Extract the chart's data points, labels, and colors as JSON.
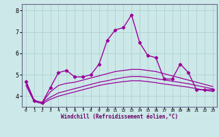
{
  "xlabel": "Windchill (Refroidissement éolien,°C)",
  "ylabel": "",
  "xlim": [
    -0.5,
    23.5
  ],
  "ylim": [
    3.5,
    8.3
  ],
  "yticks": [
    4,
    5,
    6,
    7,
    8
  ],
  "xticks": [
    0,
    1,
    2,
    3,
    4,
    5,
    6,
    7,
    8,
    9,
    10,
    11,
    12,
    13,
    14,
    15,
    16,
    17,
    18,
    19,
    20,
    21,
    22,
    23
  ],
  "bg_color": "#cce8e8",
  "grid_color": "#aacccc",
  "line_color": "#990099",
  "series": [
    [
      4.7,
      3.8,
      3.7,
      4.4,
      5.1,
      5.2,
      4.9,
      4.9,
      5.0,
      5.5,
      6.6,
      7.1,
      7.2,
      7.8,
      6.5,
      5.9,
      5.8,
      4.8,
      4.8,
      5.5,
      5.1,
      4.3,
      4.3,
      4.3
    ],
    [
      4.7,
      3.8,
      3.7,
      4.2,
      4.5,
      4.6,
      4.65,
      4.75,
      4.85,
      4.95,
      5.05,
      5.15,
      5.2,
      5.25,
      5.25,
      5.2,
      5.15,
      5.05,
      4.95,
      4.85,
      4.75,
      4.65,
      4.55,
      4.45
    ],
    [
      4.6,
      3.8,
      3.7,
      3.95,
      4.15,
      4.25,
      4.35,
      4.45,
      4.55,
      4.65,
      4.72,
      4.8,
      4.87,
      4.92,
      4.92,
      4.88,
      4.82,
      4.76,
      4.7,
      4.64,
      4.58,
      4.5,
      4.42,
      4.34
    ],
    [
      4.5,
      3.75,
      3.65,
      3.85,
      4.0,
      4.1,
      4.2,
      4.3,
      4.4,
      4.5,
      4.57,
      4.63,
      4.68,
      4.72,
      4.72,
      4.68,
      4.63,
      4.57,
      4.52,
      4.47,
      4.42,
      4.35,
      4.28,
      4.22
    ]
  ],
  "show_markers": [
    true,
    false,
    false,
    false
  ]
}
